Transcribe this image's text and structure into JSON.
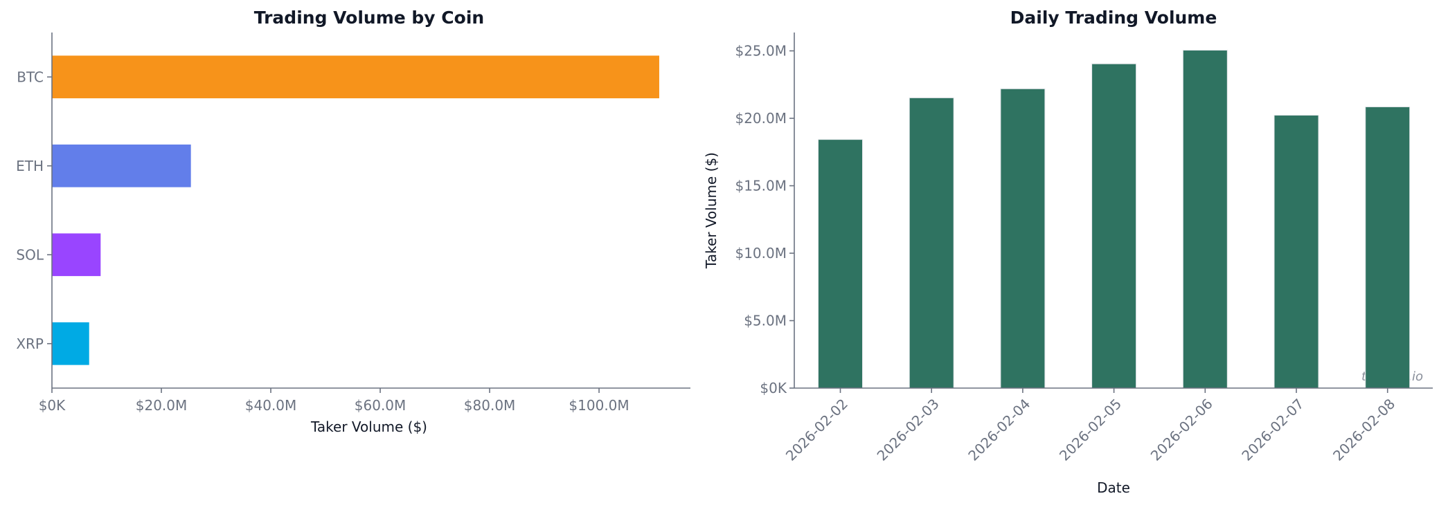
{
  "chart_data": [
    {
      "type": "bar",
      "orientation": "horizontal",
      "title": "Trading Volume by Coin",
      "xlabel": "Taker Volume ($)",
      "ylabel": "",
      "categories": [
        "BTC",
        "ETH",
        "SOL",
        "XRP"
      ],
      "values": [
        111000000,
        25400000,
        8900000,
        6800000
      ],
      "colors": [
        "#F7931A",
        "#627EEA",
        "#9945FF",
        "#00AAE4"
      ],
      "xlim": [
        0,
        116700000
      ],
      "xticks": [
        0,
        20000000,
        40000000,
        60000000,
        80000000,
        100000000
      ],
      "xtick_labels": [
        "$0K",
        "$20.0M",
        "$40.0M",
        "$60.0M",
        "$80.0M",
        "$100.0M"
      ],
      "grid": false
    },
    {
      "type": "bar",
      "title": "Daily Trading Volume",
      "xlabel": "Date",
      "ylabel": "Taker Volume ($)",
      "categories": [
        "2026-02-02",
        "2026-02-03",
        "2026-02-04",
        "2026-02-05",
        "2026-02-06",
        "2026-02-07",
        "2026-02-08"
      ],
      "values": [
        18430000,
        21520000,
        22190000,
        24040000,
        25050000,
        20230000,
        20850000
      ],
      "color": "#2F7361",
      "ylim": [
        0,
        26360000
      ],
      "yticks": [
        0,
        5000000,
        10000000,
        15000000,
        20000000,
        25000000
      ],
      "ytick_labels": [
        "$0K",
        "$5.0M",
        "$10.0M",
        "$15.0M",
        "$20.0M",
        "$25.0M"
      ],
      "grid": false,
      "watermark": "telonex.io"
    }
  ]
}
